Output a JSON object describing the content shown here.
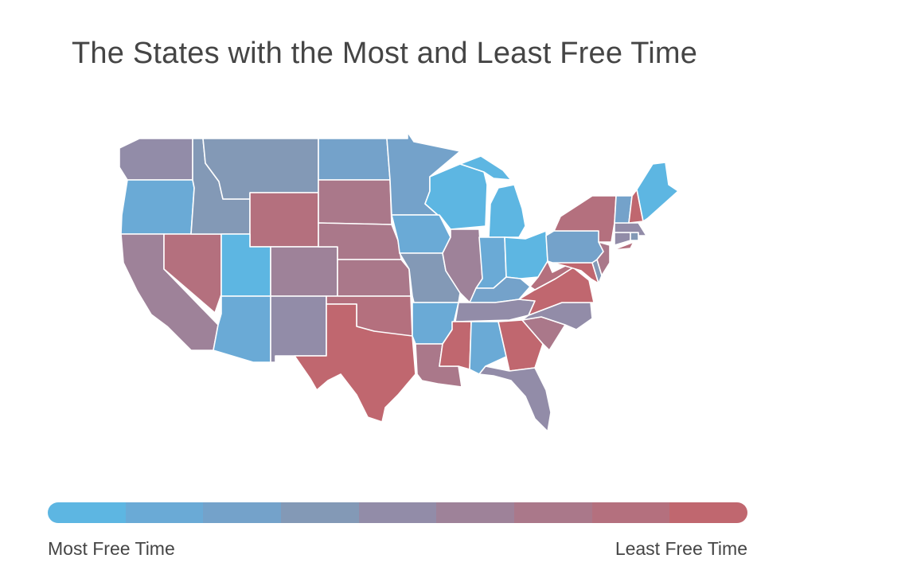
{
  "title": "The States with the Most and Least Free Time",
  "legend": {
    "left_label": "Most Free Time",
    "right_label": "Least Free Time",
    "scale_colors": [
      "#5db6e2",
      "#6aaad6",
      "#74a2ca",
      "#8399b6",
      "#928ca8",
      "#9e8299",
      "#aa788a",
      "#b4707e",
      "#c0676f"
    ]
  },
  "map": {
    "tiers": {
      "WA": 4,
      "OR": 1,
      "CA": 5,
      "NV": 7,
      "ID": 3,
      "MT": 3,
      "WY": 7,
      "UT": 0,
      "AZ": 1,
      "CO": 5,
      "NM": 4,
      "ND": 2,
      "SD": 6,
      "NE": 6,
      "KS": 6,
      "OK": 7,
      "TX": 8,
      "MN": 2,
      "IA": 1,
      "MO": 3,
      "AR": 1,
      "LA": 6,
      "WI": 0,
      "IL": 5,
      "MI": 0,
      "IN": 1,
      "OH": 0,
      "KY": 2,
      "TN": 4,
      "MS": 8,
      "AL": 1,
      "GA": 8,
      "FL": 4,
      "SC": 6,
      "NC": 4,
      "VA": 8,
      "WV": 7,
      "MD": 8,
      "DE": 3,
      "PA": 2,
      "NJ": 6,
      "NY": 7,
      "CT": 4,
      "RI": 3,
      "MA": 4,
      "VT": 2,
      "NH": 8,
      "ME": 0
    }
  }
}
